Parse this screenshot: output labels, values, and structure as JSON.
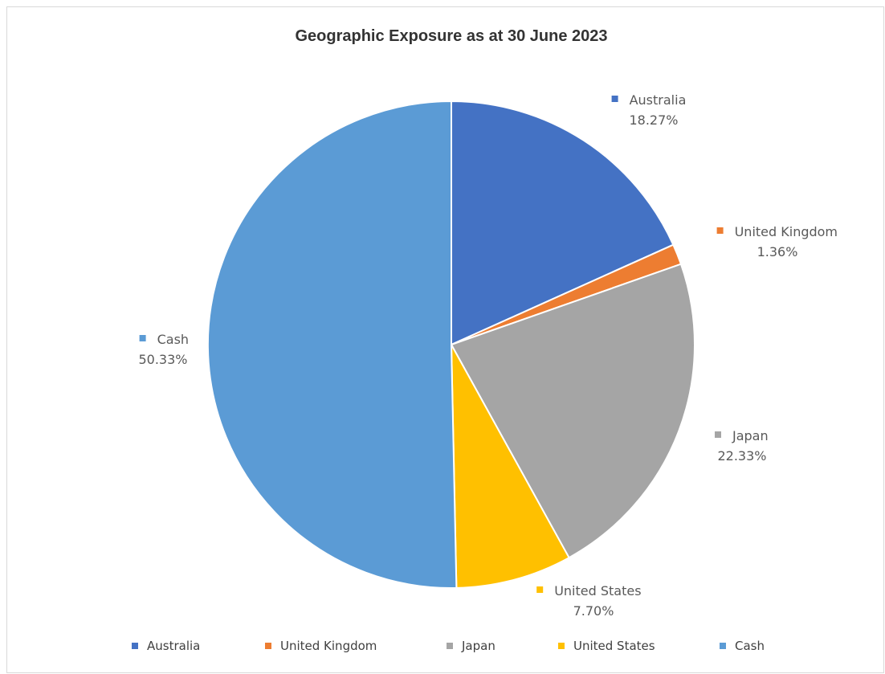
{
  "chart_data": {
    "type": "pie",
    "title": "Geographic Exposure as at 30 June 2023",
    "slices": [
      {
        "name": "Australia",
        "value": 18.27,
        "label": "18.27%",
        "color": "#4472C4"
      },
      {
        "name": "United Kingdom",
        "value": 1.36,
        "label": "1.36%",
        "color": "#ED7D31"
      },
      {
        "name": "Japan",
        "value": 22.33,
        "label": "22.33%",
        "color": "#A5A5A5"
      },
      {
        "name": "United States",
        "value": 7.7,
        "label": "7.70%",
        "color": "#FFC000"
      },
      {
        "name": "Cash",
        "value": 50.33,
        "label": "50.33%",
        "color": "#5B9BD5"
      }
    ],
    "start_angle": "12 o'clock",
    "direction": "clockwise",
    "legend_position": "bottom"
  }
}
